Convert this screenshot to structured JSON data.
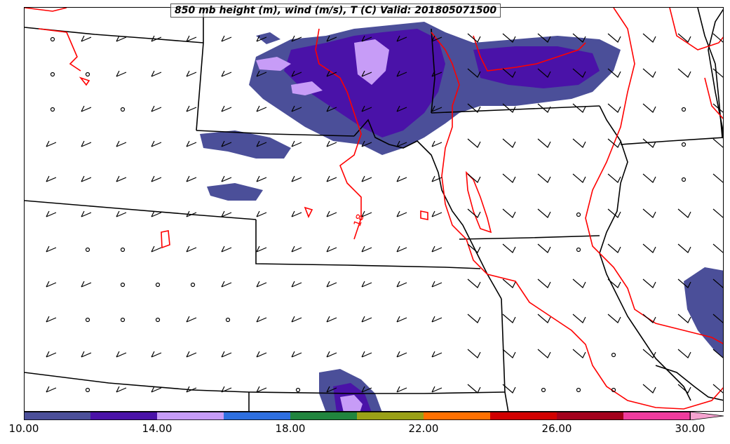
{
  "title": "850 mb height (m), wind (m/s), T (C) Valid: 201805071500",
  "contour_label": "18",
  "colors": {
    "contour": "#ff0000",
    "borders": "#000000",
    "fill_10": "#4b4f99",
    "fill_12": "#4a12a8",
    "fill_14": "#c79cf7"
  },
  "colorbar": {
    "bins": [
      "#4b4f99",
      "#4a12a8",
      "#c79cf7",
      "#2e6fe0",
      "#21853e",
      "#9aa117",
      "#ff7000",
      "#d10000",
      "#a3001c",
      "#f03c9e"
    ],
    "extend_color": "#f5a3d0",
    "tick_labels": [
      "10.00",
      "14.00",
      "18.00",
      "22.00",
      "26.00",
      "30.00"
    ]
  }
}
